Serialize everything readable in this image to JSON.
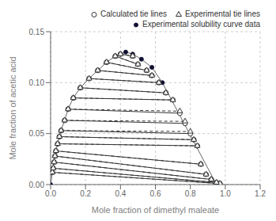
{
  "chart_data": {
    "type": "line",
    "xlabel": "Mole fraction of dimethyl maleate",
    "ylabel": "Mole fraction of acetic acid",
    "xlim": [
      0,
      1.2
    ],
    "ylim": [
      0,
      0.15
    ],
    "xticks": [
      {
        "value": 0,
        "label": "0.0"
      },
      {
        "value": 0.2,
        "label": "0.2"
      },
      {
        "value": 0.4,
        "label": "0.4"
      },
      {
        "value": 0.6,
        "label": "0.6"
      },
      {
        "value": 0.8,
        "label": "0.8"
      },
      {
        "value": 1.0,
        "label": "1.0"
      },
      {
        "value": 1.2,
        "label": "1.2"
      }
    ],
    "yticks": [
      {
        "value": 0,
        "label": "0.00"
      },
      {
        "value": 0.05,
        "label": "0.05"
      },
      {
        "value": 0.1,
        "label": "0.10"
      },
      {
        "value": 0.15,
        "label": "0.15"
      }
    ],
    "grid": true,
    "legend": "upper right",
    "series": [
      {
        "name": "Calculated tie lines",
        "type": "tielines",
        "color": "#333333",
        "marker": "circle",
        "line_style": "solid",
        "segments": [
          [
            [
              0.01,
              0.012
            ],
            [
              0.97,
              0.001
            ]
          ],
          [
            [
              0.015,
              0.016
            ],
            [
              0.95,
              0.002
            ]
          ],
          [
            [
              0.02,
              0.022
            ],
            [
              0.92,
              0.005
            ]
          ],
          [
            [
              0.025,
              0.028
            ],
            [
              0.89,
              0.01
            ]
          ],
          [
            [
              0.03,
              0.033
            ],
            [
              0.86,
              0.02
            ]
          ],
          [
            [
              0.04,
              0.04
            ],
            [
              0.84,
              0.038
            ]
          ],
          [
            [
              0.05,
              0.047
            ],
            [
              0.82,
              0.044
            ]
          ],
          [
            [
              0.06,
              0.053
            ],
            [
              0.8,
              0.05
            ]
          ],
          [
            [
              0.08,
              0.063
            ],
            [
              0.77,
              0.06
            ]
          ],
          [
            [
              0.1,
              0.074
            ],
            [
              0.74,
              0.07
            ]
          ],
          [
            [
              0.13,
              0.085
            ],
            [
              0.7,
              0.083
            ]
          ],
          [
            [
              0.17,
              0.095
            ],
            [
              0.66,
              0.09
            ]
          ],
          [
            [
              0.22,
              0.104
            ],
            [
              0.62,
              0.1
            ]
          ],
          [
            [
              0.27,
              0.112
            ],
            [
              0.58,
              0.107
            ]
          ],
          [
            [
              0.32,
              0.12
            ],
            [
              0.55,
              0.112
            ]
          ],
          [
            [
              0.37,
              0.126
            ],
            [
              0.5,
              0.118
            ]
          ],
          [
            [
              0.4,
              0.128
            ],
            [
              0.47,
              0.126
            ]
          ]
        ]
      },
      {
        "name": "Experimental tie lines",
        "type": "tielines",
        "color": "#333333",
        "marker": "triangle",
        "line_style": "dashed",
        "segments": [
          [
            [
              0.01,
              0.012
            ],
            [
              0.97,
              0.001
            ]
          ],
          [
            [
              0.015,
              0.016
            ],
            [
              0.95,
              0.002
            ]
          ],
          [
            [
              0.02,
              0.022
            ],
            [
              0.92,
              0.005
            ]
          ],
          [
            [
              0.025,
              0.028
            ],
            [
              0.89,
              0.01
            ]
          ],
          [
            [
              0.03,
              0.033
            ],
            [
              0.86,
              0.02
            ]
          ],
          [
            [
              0.04,
              0.04
            ],
            [
              0.84,
              0.038
            ]
          ],
          [
            [
              0.05,
              0.047
            ],
            [
              0.82,
              0.044
            ]
          ],
          [
            [
              0.06,
              0.053
            ],
            [
              0.8,
              0.052
            ]
          ],
          [
            [
              0.08,
              0.063
            ],
            [
              0.77,
              0.062
            ]
          ],
          [
            [
              0.1,
              0.074
            ],
            [
              0.74,
              0.072
            ]
          ],
          [
            [
              0.13,
              0.085
            ],
            [
              0.7,
              0.083
            ]
          ],
          [
            [
              0.17,
              0.095
            ],
            [
              0.66,
              0.09
            ]
          ],
          [
            [
              0.22,
              0.104
            ],
            [
              0.62,
              0.1
            ]
          ],
          [
            [
              0.27,
              0.112
            ],
            [
              0.58,
              0.107
            ]
          ],
          [
            [
              0.32,
              0.12
            ],
            [
              0.55,
              0.112
            ]
          ],
          [
            [
              0.37,
              0.126
            ],
            [
              0.5,
              0.118
            ]
          ],
          [
            [
              0.4,
              0.128
            ],
            [
              0.47,
              0.126
            ]
          ]
        ]
      },
      {
        "name": "Experimental solubility curve data",
        "type": "line",
        "color": "#111133",
        "marker": "filled_circle",
        "line_style": "solid",
        "points": [
          [
            0.0,
            0.0
          ],
          [
            0.01,
            0.012
          ],
          [
            0.015,
            0.016
          ],
          [
            0.02,
            0.022
          ],
          [
            0.025,
            0.028
          ],
          [
            0.03,
            0.033
          ],
          [
            0.04,
            0.04
          ],
          [
            0.05,
            0.047
          ],
          [
            0.06,
            0.053
          ],
          [
            0.08,
            0.063
          ],
          [
            0.1,
            0.074
          ],
          [
            0.13,
            0.085
          ],
          [
            0.17,
            0.095
          ],
          [
            0.22,
            0.104
          ],
          [
            0.27,
            0.112
          ],
          [
            0.32,
            0.12
          ],
          [
            0.37,
            0.126
          ],
          [
            0.4,
            0.128
          ],
          [
            0.43,
            0.13
          ],
          [
            0.47,
            0.128
          ],
          [
            0.52,
            0.123
          ],
          [
            0.58,
            0.115
          ],
          [
            0.64,
            0.1
          ],
          [
            0.95,
            0.0
          ]
        ]
      }
    ]
  }
}
